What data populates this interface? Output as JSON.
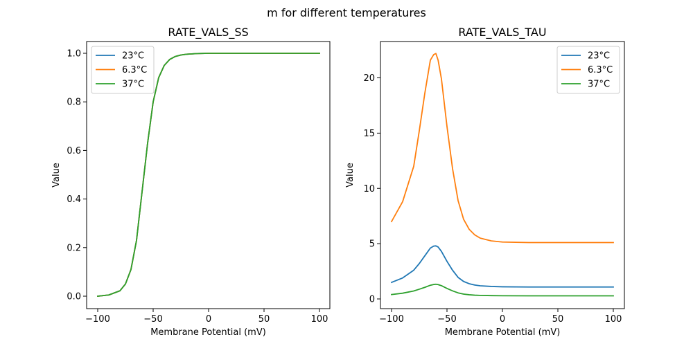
{
  "figure": {
    "suptitle": "m for different temperatures"
  },
  "chart_data": [
    {
      "type": "line",
      "title": "RATE_VALS_SS",
      "xlabel": "Membrane Potential (mV)",
      "ylabel": "Value",
      "xlim": [
        -100,
        100
      ],
      "ylim": [
        0,
        1
      ],
      "xticks": [
        -100,
        -50,
        0,
        50,
        100
      ],
      "yticks": [
        0.0,
        0.2,
        0.4,
        0.6,
        0.8,
        1.0
      ],
      "ytick_labels": [
        "0.0",
        "0.2",
        "0.4",
        "0.6",
        "0.8",
        "1.0"
      ],
      "legend": "top-left",
      "grid": false,
      "x": [
        -100,
        -90,
        -80,
        -75,
        -70,
        -65,
        -60,
        -55,
        -50,
        -45,
        -40,
        -35,
        -30,
        -25,
        -20,
        -10,
        0,
        25,
        50,
        100
      ],
      "series": [
        {
          "name": "23°C",
          "color": "#1f77b4",
          "values": [
            0.0,
            0.005,
            0.022,
            0.05,
            0.11,
            0.23,
            0.43,
            0.63,
            0.8,
            0.9,
            0.95,
            0.975,
            0.987,
            0.993,
            0.996,
            0.999,
            1.0,
            1.0,
            1.0,
            1.0
          ]
        },
        {
          "name": "6.3°C",
          "color": "#ff7f0e",
          "values": [
            0.0,
            0.005,
            0.022,
            0.05,
            0.11,
            0.23,
            0.43,
            0.63,
            0.8,
            0.9,
            0.95,
            0.975,
            0.987,
            0.993,
            0.996,
            0.999,
            1.0,
            1.0,
            1.0,
            1.0
          ]
        },
        {
          "name": "37°C",
          "color": "#2ca02c",
          "values": [
            0.0,
            0.005,
            0.022,
            0.05,
            0.11,
            0.23,
            0.43,
            0.63,
            0.8,
            0.9,
            0.95,
            0.975,
            0.987,
            0.993,
            0.996,
            0.999,
            1.0,
            1.0,
            1.0,
            1.0
          ]
        }
      ]
    },
    {
      "type": "line",
      "title": "RATE_VALS_TAU",
      "xlabel": "Membrane Potential (mV)",
      "ylabel": "Value",
      "xlim": [
        -100,
        100
      ],
      "ylim": [
        0,
        22.2
      ],
      "xticks": [
        -100,
        -50,
        0,
        50,
        100
      ],
      "yticks": [
        0,
        5,
        10,
        15,
        20
      ],
      "ytick_labels": [
        "0",
        "5",
        "10",
        "15",
        "20"
      ],
      "legend": "top-right",
      "grid": false,
      "x": [
        -100,
        -90,
        -80,
        -75,
        -70,
        -65,
        -62,
        -60,
        -58,
        -55,
        -50,
        -45,
        -40,
        -35,
        -30,
        -25,
        -20,
        -10,
        0,
        25,
        50,
        100
      ],
      "series": [
        {
          "name": "23°C",
          "color": "#1f77b4",
          "values": [
            1.5,
            1.9,
            2.6,
            3.2,
            3.9,
            4.6,
            4.78,
            4.8,
            4.7,
            4.3,
            3.4,
            2.6,
            1.95,
            1.58,
            1.38,
            1.26,
            1.19,
            1.13,
            1.1,
            1.08,
            1.08,
            1.08
          ]
        },
        {
          "name": "6.3°C",
          "color": "#ff7f0e",
          "values": [
            7.0,
            8.8,
            12.0,
            15.2,
            18.6,
            21.6,
            22.1,
            22.2,
            21.6,
            19.9,
            15.6,
            11.8,
            8.9,
            7.2,
            6.3,
            5.8,
            5.5,
            5.25,
            5.15,
            5.1,
            5.1,
            5.1
          ]
        },
        {
          "name": "37°C",
          "color": "#2ca02c",
          "values": [
            0.4,
            0.52,
            0.72,
            0.88,
            1.05,
            1.24,
            1.31,
            1.33,
            1.3,
            1.2,
            0.95,
            0.73,
            0.55,
            0.44,
            0.38,
            0.34,
            0.32,
            0.3,
            0.29,
            0.28,
            0.28,
            0.28
          ]
        }
      ]
    }
  ]
}
